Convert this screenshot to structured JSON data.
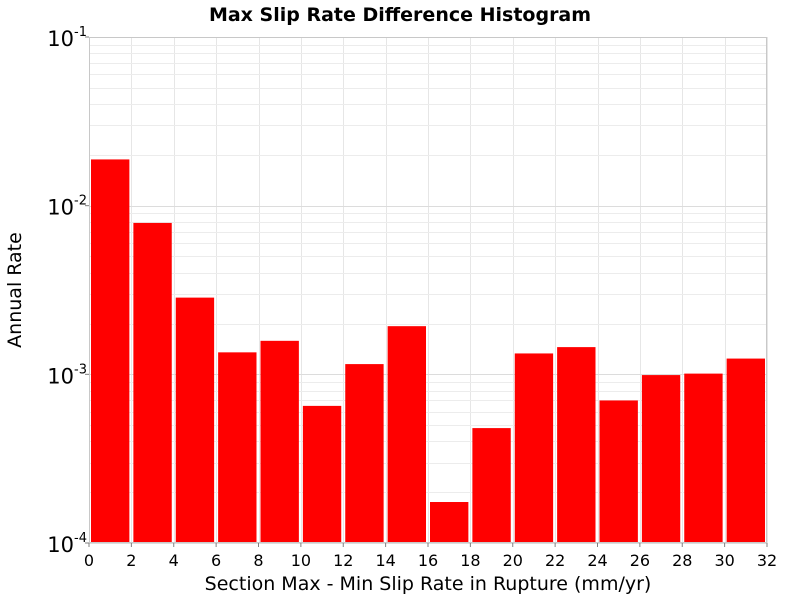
{
  "chart_data": {
    "type": "bar",
    "title": "Max Slip Rate Difference Histogram",
    "xlabel": "Section Max - Min Slip Rate in Rupture (mm/yr)",
    "ylabel": "Annual Rate",
    "y_scale": "log",
    "ylim": [
      0.0001,
      0.1
    ],
    "xlim": [
      0,
      32
    ],
    "grid": true,
    "bar_color": "#ff0000",
    "bin_width": 2,
    "x": [
      1,
      3,
      5,
      7,
      9,
      11,
      13,
      15,
      17,
      19,
      21,
      23,
      25,
      27,
      29,
      31
    ],
    "values": [
      0.0188,
      0.0079,
      0.00285,
      0.00135,
      0.00158,
      0.00065,
      0.00115,
      0.00193,
      0.000175,
      0.00048,
      0.00133,
      0.00145,
      0.0007,
      0.00099,
      0.00101,
      0.00124
    ],
    "x_ticks": [
      0,
      2,
      4,
      6,
      8,
      10,
      12,
      14,
      16,
      18,
      20,
      22,
      24,
      26,
      28,
      30,
      32
    ],
    "y_ticks": [
      {
        "value": 0.1,
        "base": "10",
        "exp": "-1"
      },
      {
        "value": 0.01,
        "base": "10",
        "exp": "-2"
      },
      {
        "value": 0.001,
        "base": "10",
        "exp": "-3"
      },
      {
        "value": 0.0001,
        "base": "10",
        "exp": "-4"
      }
    ]
  }
}
